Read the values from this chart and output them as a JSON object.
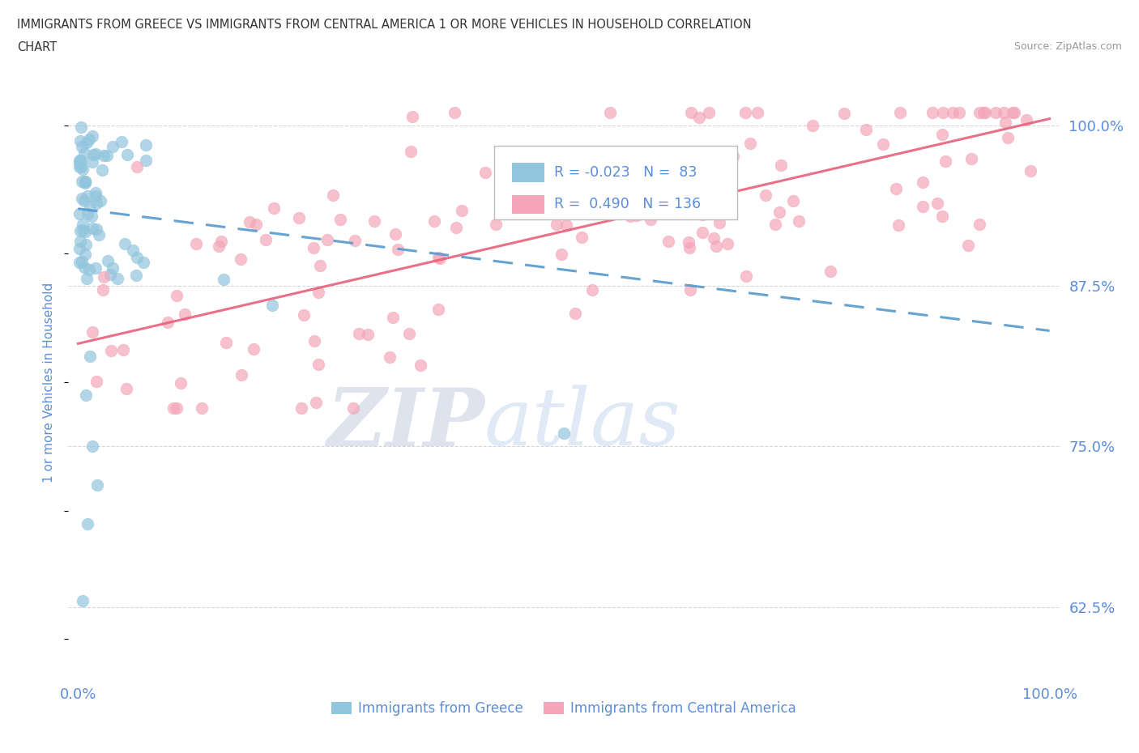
{
  "title_line1": "IMMIGRANTS FROM GREECE VS IMMIGRANTS FROM CENTRAL AMERICA 1 OR MORE VEHICLES IN HOUSEHOLD CORRELATION",
  "title_line2": "CHART",
  "source": "Source: ZipAtlas.com",
  "ylabel": "1 or more Vehicles in Household",
  "watermark_zip": "ZIP",
  "watermark_atlas": "atlas",
  "legend_R1": "-0.023",
  "legend_N1": "83",
  "legend_R2": "0.490",
  "legend_N2": "136",
  "blue_color": "#92c5de",
  "pink_color": "#f4a6b8",
  "trend_blue_color": "#5599cc",
  "trend_pink_color": "#e8607a",
  "axis_label_color": "#5b8dd9",
  "title_color": "#333333",
  "source_color": "#999999",
  "grid_color": "#cccccc",
  "right_yticks": [
    62.5,
    75.0,
    87.5,
    100.0
  ],
  "right_ytick_labels": [
    "62.5%",
    "75.0%",
    "87.5%",
    "100.0%"
  ],
  "xlim": [
    -1,
    101
  ],
  "ylim": [
    57,
    103
  ],
  "blue_trend_x0": 0,
  "blue_trend_y0": 93.5,
  "blue_trend_x1": 100,
  "blue_trend_y1": 84.0,
  "pink_trend_x0": 0,
  "pink_trend_y0": 83.0,
  "pink_trend_x1": 100,
  "pink_trend_y1": 100.5
}
